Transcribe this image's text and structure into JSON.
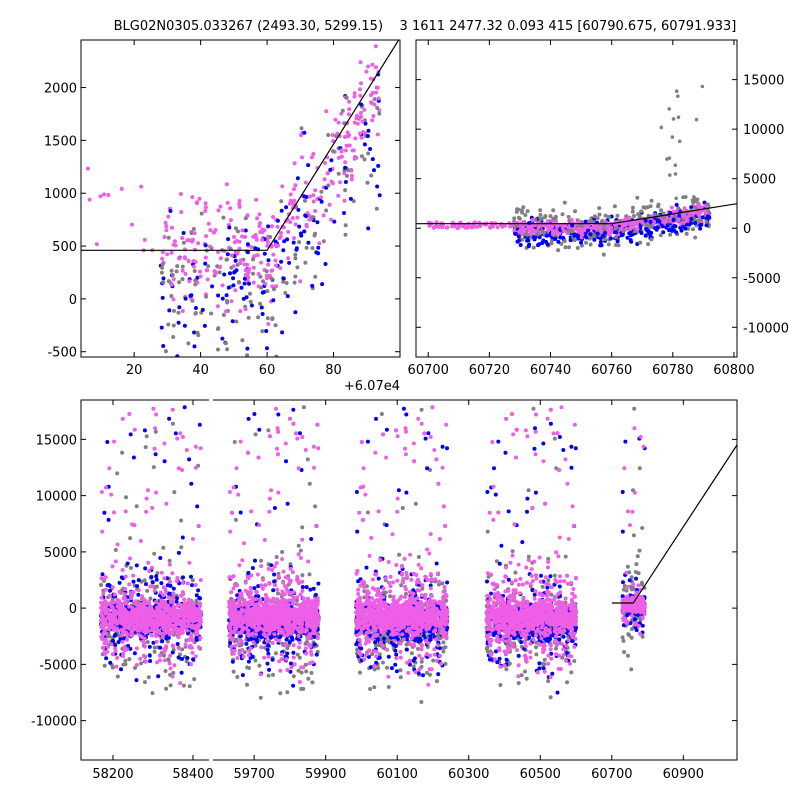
{
  "title": "BLG02N0305.033267 (2493.30, 5299.15)    3 1611 2477.32 0.093 415 [60790.675, 60791.933]",
  "colors": {
    "gray": "#808080",
    "blue": "#0000ff",
    "pink": "#ee5ee6",
    "model": "#000000"
  },
  "chart_data": [
    {
      "type": "scatter",
      "panel": "top-left zoom",
      "x_offset_label": "+6.07e4",
      "xlim": [
        4,
        100
      ],
      "ylim": [
        -550,
        2450
      ],
      "xticks": [
        "20",
        "40",
        "60",
        "80"
      ],
      "yticks": [
        "-500",
        "0",
        "500",
        "1000",
        "1500",
        "2000"
      ],
      "model_line": [
        [
          4,
          460
        ],
        [
          60,
          460
        ],
        [
          100,
          2470
        ]
      ]
    },
    {
      "type": "scatter",
      "panel": "top-right",
      "xlim": [
        60696,
        60801
      ],
      "ylim": [
        -13000,
        19000
      ],
      "xticks": [
        "60700",
        "60720",
        "60740",
        "60760",
        "60780",
        "60800"
      ],
      "yticks": [
        "-10000",
        "-5000",
        "0",
        "5000",
        "10000",
        "15000"
      ],
      "model_line": [
        [
          60696,
          460
        ],
        [
          60760,
          460
        ],
        [
          60801,
          2477
        ]
      ]
    },
    {
      "type": "scatter",
      "panel": "bottom, broken x-axis",
      "ylim": [
        -13500,
        18500
      ],
      "yticks": [
        "-10000",
        "-5000",
        "0",
        "5000",
        "10000",
        "15000"
      ],
      "segments": [
        {
          "xlim": [
            58120,
            58440
          ],
          "xticks": [
            "58200",
            "58400"
          ]
        },
        {
          "xlim": [
            59585,
            61050
          ],
          "xticks": [
            "59700",
            "59900",
            "60100",
            "60300",
            "60500",
            "60700",
            "60900"
          ]
        }
      ],
      "seasons": [
        {
          "range": [
            58170,
            58420
          ],
          "series": [
            {
              "color": "gray",
              "center": -1100,
              "spread": 4300
            },
            {
              "color": "blue",
              "center": -900,
              "spread": 3600
            },
            {
              "color": "pink",
              "center": -800,
              "spread": 3400
            }
          ]
        },
        {
          "range": [
            59630,
            59880
          ],
          "series": [
            {
              "color": "gray",
              "center": -1400,
              "spread": 4300
            },
            {
              "color": "blue",
              "center": -1300,
              "spread": 3600
            },
            {
              "color": "pink",
              "center": -700,
              "spread": 3400
            }
          ]
        },
        {
          "range": [
            59985,
            60240
          ],
          "series": [
            {
              "color": "gray",
              "center": -1500,
              "spread": 4400
            },
            {
              "color": "blue",
              "center": -1300,
              "spread": 3700
            },
            {
              "color": "pink",
              "center": -600,
              "spread": 3600
            }
          ]
        },
        {
          "range": [
            60350,
            60600
          ],
          "series": [
            {
              "color": "gray",
              "center": -1400,
              "spread": 4200
            },
            {
              "color": "blue",
              "center": -1300,
              "spread": 3600
            },
            {
              "color": "pink",
              "center": -700,
              "spread": 3500
            }
          ]
        },
        {
          "range": [
            60730,
            60792
          ],
          "series": [
            {
              "color": "gray",
              "center": 0,
              "spread": 5000
            },
            {
              "color": "blue",
              "center": 300,
              "spread": 2000
            },
            {
              "color": "pink",
              "center": 300,
              "spread": 1500
            }
          ]
        }
      ],
      "model_line": [
        [
          60700,
          460
        ],
        [
          60760,
          460
        ],
        [
          61050,
          14500
        ]
      ]
    }
  ]
}
